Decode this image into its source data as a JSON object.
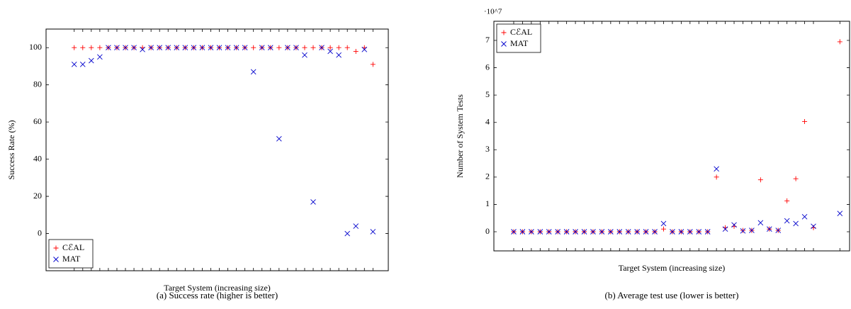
{
  "chart_data": [
    {
      "type": "scatter",
      "title": "(a) Success rate (higher is better)",
      "xlabel": "Target System (increasing size)",
      "ylabel": "Success Rate (%)",
      "x": [
        0,
        1,
        2,
        3,
        4,
        5,
        6,
        7,
        8,
        9,
        10,
        11,
        12,
        13,
        14,
        15,
        16,
        17,
        18,
        19,
        20,
        21,
        22,
        23,
        24,
        25,
        26,
        27,
        28,
        29,
        30,
        31,
        32,
        33,
        34,
        35
      ],
      "xlim": [
        -3.3,
        36.8
      ],
      "ylim": [
        -20,
        110
      ],
      "yticks": [
        0,
        20,
        40,
        60,
        80,
        100
      ],
      "legend": "lower left",
      "series": [
        {
          "name": "CℰAL",
          "color": "#ff0000",
          "marker": "plus",
          "values": [
            100,
            100,
            100,
            100,
            100,
            100,
            100,
            100,
            100,
            100,
            100,
            100,
            100,
            100,
            100,
            100,
            100,
            100,
            100,
            100,
            100,
            100,
            100,
            100,
            100,
            100,
            100,
            100,
            100,
            100,
            100,
            100,
            100,
            98,
            100,
            91
          ]
        },
        {
          "name": "MAT",
          "color": "#0000cc",
          "marker": "cross",
          "values": [
            91,
            91,
            93,
            95,
            100,
            100,
            100,
            100,
            99,
            100,
            100,
            100,
            100,
            100,
            100,
            100,
            100,
            100,
            100,
            100,
            100,
            87,
            100,
            100,
            51,
            100,
            100,
            96,
            17,
            100,
            98,
            96,
            0,
            4,
            99,
            1
          ]
        }
      ]
    },
    {
      "type": "scatter",
      "title": "(b) Average test use (lower is better)",
      "xlabel": "Target System (increasing size)",
      "ylabel": "Number of System Tests",
      "multiplier": "·10^7",
      "x": [
        0,
        1,
        2,
        3,
        4,
        5,
        6,
        7,
        8,
        9,
        10,
        11,
        12,
        13,
        14,
        15,
        16,
        17,
        18,
        19,
        20,
        21,
        22,
        23,
        24,
        25,
        26,
        27,
        28,
        29,
        30,
        31,
        32,
        33,
        34,
        37
      ],
      "xlim": [
        -2.25,
        38.1
      ],
      "ylim": [
        -0.7,
        7.7
      ],
      "yticks": [
        0,
        1,
        2,
        3,
        4,
        5,
        6,
        7
      ],
      "legend": "upper left",
      "series": [
        {
          "name": "CℰAL",
          "color": "#ff0000",
          "marker": "plus",
          "values": [
            0,
            0,
            0,
            0,
            0,
            0,
            0,
            0,
            0,
            0,
            0,
            0,
            0,
            0,
            0,
            0,
            0,
            0.1,
            0,
            0,
            0,
            0,
            0,
            2.0,
            0.15,
            0.2,
            0.05,
            0.05,
            1.9,
            0.1,
            0.05,
            1.13,
            1.94,
            4.03,
            0.15,
            6.95
          ]
        },
        {
          "name": "MAT",
          "color": "#0000cc",
          "marker": "cross",
          "values": [
            0,
            0,
            0,
            0,
            0,
            0,
            0,
            0,
            0,
            0,
            0,
            0,
            0,
            0,
            0,
            0,
            0,
            0.3,
            0,
            0,
            0,
            0,
            0,
            2.3,
            0.1,
            0.25,
            0.03,
            0.05,
            0.33,
            0.1,
            0.05,
            0.4,
            0.3,
            0.55,
            0.2,
            0.67
          ]
        }
      ]
    }
  ]
}
